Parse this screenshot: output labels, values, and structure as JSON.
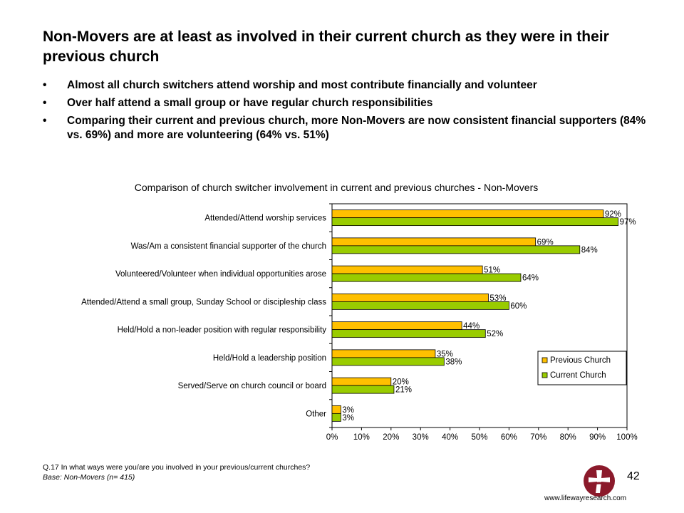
{
  "title": "Non-Movers are at least as involved in their current church as they were in their previous church",
  "bullets": [
    "Almost all church switchers attend worship and most contribute financially and volunteer",
    "Over half attend a small group or have regular church responsibilities",
    "Comparing their current and previous church, more Non-Movers are now consistent financial supporters (84% vs. 69%) and more are volunteering (64% vs. 51%)"
  ],
  "bullet_symbol": "•",
  "chart_data": {
    "type": "bar",
    "orientation": "horizontal",
    "title": "Comparison of church switcher involvement in current and previous churches - Non-Movers",
    "categories": [
      "Attended/Attend worship services",
      "Was/Am a consistent financial supporter of the church",
      "Volunteered/Volunteer when individual opportunities arose",
      "Attended/Attend a small group, Sunday School or discipleship class",
      "Held/Hold a non-leader position with regular responsibility",
      "Held/Hold a leadership position",
      "Served/Serve on church council or board",
      "Other"
    ],
    "series": [
      {
        "name": "Previous Church",
        "color": "#FFC000",
        "values": [
          92,
          69,
          51,
          53,
          44,
          35,
          20,
          3
        ],
        "labels": [
          "92%",
          "69%",
          "51%",
          "53%",
          "44%",
          "35%",
          "20%",
          "3%"
        ]
      },
      {
        "name": "Current Church",
        "color": "#99CC00",
        "values": [
          97,
          84,
          64,
          60,
          52,
          38,
          21,
          3
        ],
        "labels": [
          "97%",
          "84%",
          "64%",
          "60%",
          "52%",
          "38%",
          "21%",
          "3%"
        ]
      }
    ],
    "xlim": [
      0,
      100
    ],
    "xticks": [
      "0%",
      "10%",
      "20%",
      "30%",
      "40%",
      "50%",
      "60%",
      "70%",
      "80%",
      "90%",
      "100%"
    ],
    "grid": false,
    "legend": "bottom-right inside plot"
  },
  "footnote": {
    "question": "Q.17 In what ways were you/are you involved in your previous/current churches?",
    "base": "Base: Non-Movers  (n= 415)"
  },
  "page_number": "42",
  "website": "www.lifewayresearch.com",
  "colors": {
    "logo": "#8B1A2B"
  }
}
